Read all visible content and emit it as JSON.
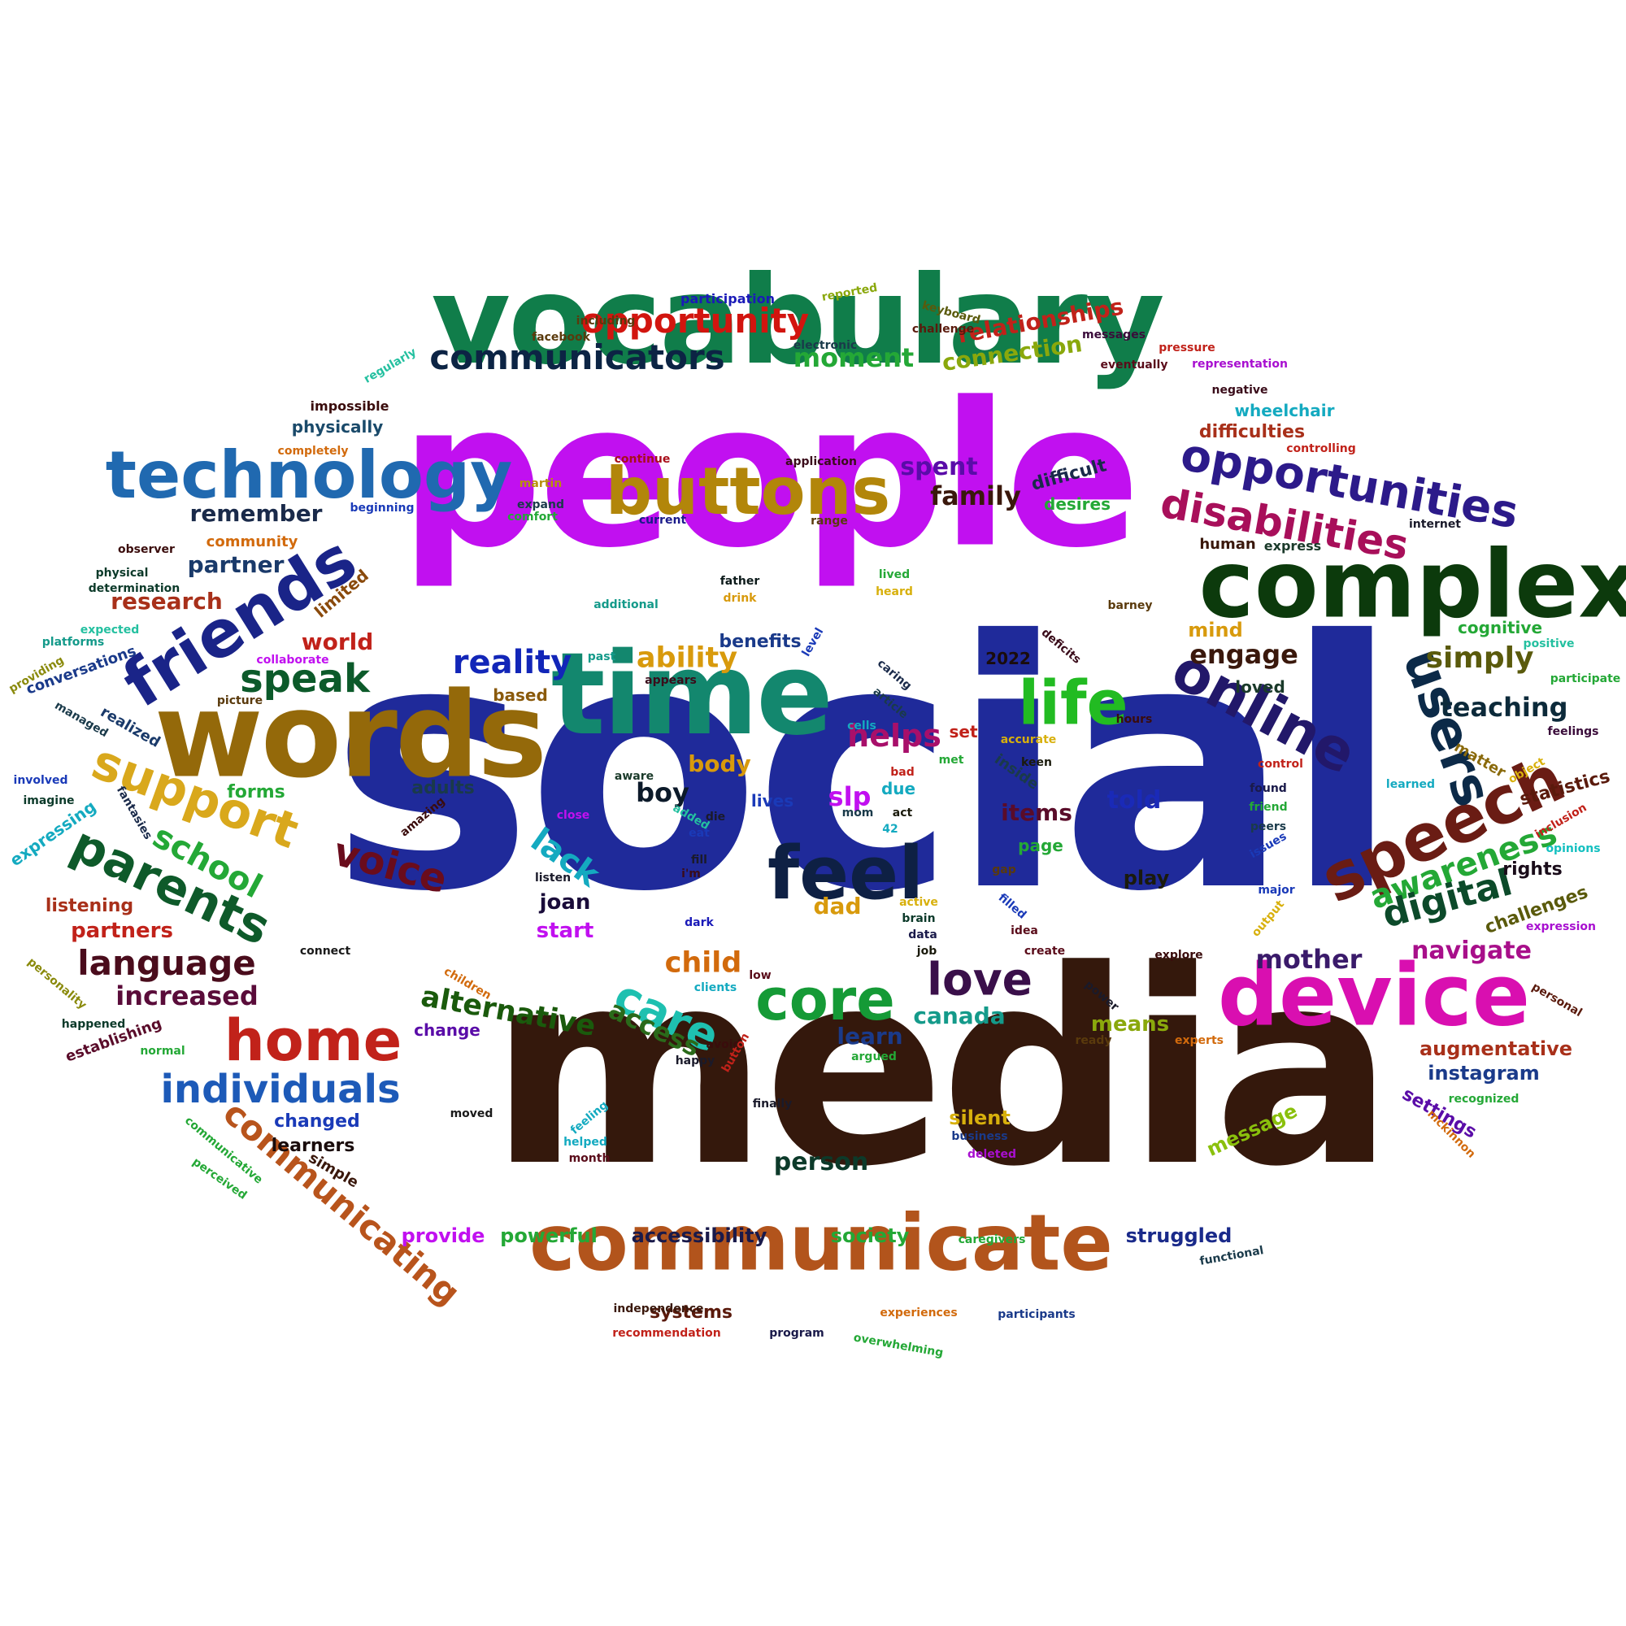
{
  "words": [
    {
      "text": "social",
      "color": "#1f2a9a"
    },
    {
      "text": "media",
      "color": "#34180c"
    },
    {
      "text": "people",
      "color": "#c110f0"
    },
    {
      "text": "vocabulary",
      "color": "#107d4a"
    },
    {
      "text": "words",
      "color": "#94690a"
    },
    {
      "text": "time",
      "color": "#13876e"
    },
    {
      "text": "communicate",
      "color": "#b2541c"
    },
    {
      "text": "complex",
      "color": "#0c3a0c"
    },
    {
      "text": "device",
      "color": "#d90fb0"
    },
    {
      "text": "technology",
      "color": "#2069b0"
    },
    {
      "text": "friends",
      "color": "#1a2488"
    },
    {
      "text": "buttons",
      "color": "#b2860a"
    },
    {
      "text": "feel",
      "color": "#0e2044"
    },
    {
      "text": "speech",
      "color": "#6a1c14"
    },
    {
      "text": "life",
      "color": "#22bb22"
    },
    {
      "text": "online",
      "color": "#22186a"
    },
    {
      "text": "users",
      "color": "#0c2a48"
    },
    {
      "text": "core",
      "color": "#159a36"
    },
    {
      "text": "home",
      "color": "#c1221a"
    },
    {
      "text": "support",
      "color": "#d9a81c"
    },
    {
      "text": "parents",
      "color": "#0e5a2a"
    },
    {
      "text": "opportunities",
      "color": "#2c1a8a"
    },
    {
      "text": "disabilities",
      "color": "#a80f5a"
    },
    {
      "text": "communicators",
      "color": "#0c2444"
    },
    {
      "text": "opportunity",
      "color": "#d2150f"
    },
    {
      "text": "individuals",
      "color": "#1d5ab8"
    },
    {
      "text": "communicating",
      "color": "#b8541c"
    },
    {
      "text": "speak",
      "color": "#0c5a2a"
    },
    {
      "text": "language",
      "color": "#4a0c1c"
    },
    {
      "text": "love",
      "color": "#3a0f4a"
    },
    {
      "text": "care",
      "color": "#1ec0b0"
    },
    {
      "text": "awareness",
      "color": "#24a836"
    },
    {
      "text": "digital",
      "color": "#0c4a2a"
    },
    {
      "text": "voice",
      "color": "#6a0c1c"
    },
    {
      "text": "school",
      "color": "#24a836"
    },
    {
      "text": "lack",
      "color": "#14aac0"
    },
    {
      "text": "reality",
      "color": "#1226b8"
    },
    {
      "text": "simply",
      "color": "#5a5a0c"
    },
    {
      "text": "ability",
      "color": "#d89a0c"
    },
    {
      "text": "helps",
      "color": "#a80f6a"
    },
    {
      "text": "alternative",
      "color": "#1a5a0c"
    },
    {
      "text": "access",
      "color": "#2a6a1a"
    },
    {
      "text": "child",
      "color": "#d26a0c"
    },
    {
      "text": "moment",
      "color": "#24a836"
    },
    {
      "text": "connection",
      "color": "#8aa80c"
    },
    {
      "text": "relationships",
      "color": "#c1221a"
    },
    {
      "text": "engage",
      "color": "#3a180c"
    },
    {
      "text": "teaching",
      "color": "#0c2a3a"
    },
    {
      "text": "navigate",
      "color": "#a80f8a"
    },
    {
      "text": "mother",
      "color": "#3a1a6a"
    },
    {
      "text": "increased",
      "color": "#5a0c3a"
    },
    {
      "text": "family",
      "color": "#3a180c"
    },
    {
      "text": "spent",
      "color": "#5a0ca8"
    },
    {
      "text": "remember",
      "color": "#1a2a4a"
    },
    {
      "text": "partner",
      "color": "#1a3a6a"
    },
    {
      "text": "research",
      "color": "#a8301a"
    },
    {
      "text": "world",
      "color": "#c1221a"
    },
    {
      "text": "canada",
      "color": "#149a8a"
    },
    {
      "text": "learn",
      "color": "#1a3a8a"
    },
    {
      "text": "body",
      "color": "#d89a0c"
    },
    {
      "text": "boy",
      "color": "#0c1a2a"
    },
    {
      "text": "slp",
      "color": "#c110f0"
    },
    {
      "text": "told",
      "color": "#1a2ab8"
    },
    {
      "text": "items",
      "color": "#5a0c2a"
    },
    {
      "text": "dad",
      "color": "#d89a0c"
    },
    {
      "text": "joan",
      "color": "#1a0c3a"
    },
    {
      "text": "start",
      "color": "#c110f0"
    },
    {
      "text": "play",
      "color": "#1a1a0c"
    },
    {
      "text": "person",
      "color": "#0c3a2a"
    },
    {
      "text": "means",
      "color": "#8aa80c"
    },
    {
      "text": "statistics",
      "color": "#5a1a0c"
    },
    {
      "text": "rights",
      "color": "#1a0c1a"
    },
    {
      "text": "challenges",
      "color": "#5a5a0c"
    },
    {
      "text": "instagram",
      "color": "#1a3a8a"
    },
    {
      "text": "augmentative",
      "color": "#a8301a"
    },
    {
      "text": "settings",
      "color": "#5a0ca8"
    },
    {
      "text": "message",
      "color": "#8ac00c"
    },
    {
      "text": "silent",
      "color": "#d8b00c"
    },
    {
      "text": "struggled",
      "color": "#1a2a8a"
    },
    {
      "text": "accessibility",
      "color": "#1a1a4a"
    },
    {
      "text": "society",
      "color": "#24a836"
    },
    {
      "text": "powerful",
      "color": "#24a836"
    },
    {
      "text": "provide",
      "color": "#c110f0"
    },
    {
      "text": "systems",
      "color": "#5a1a0c"
    },
    {
      "text": "changed",
      "color": "#1a3ab8"
    },
    {
      "text": "learners",
      "color": "#1a0c0c"
    },
    {
      "text": "partners",
      "color": "#c1221a"
    },
    {
      "text": "listening",
      "color": "#a8301a"
    },
    {
      "text": "forms",
      "color": "#24a836"
    },
    {
      "text": "adults",
      "color": "#1a3a4a"
    },
    {
      "text": "lives",
      "color": "#1a3ab8"
    },
    {
      "text": "benefits",
      "color": "#1a3a8a"
    },
    {
      "text": "based",
      "color": "#8a5a0c"
    },
    {
      "text": "mind",
      "color": "#d89a0c"
    },
    {
      "text": "loved",
      "color": "#1a3a2a"
    },
    {
      "text": "matter",
      "color": "#8a6a0c"
    },
    {
      "text": "cognitive",
      "color": "#24a836"
    },
    {
      "text": "difficult",
      "color": "#1a2a4a"
    },
    {
      "text": "desires",
      "color": "#24a836"
    },
    {
      "text": "difficulties",
      "color": "#a8301a"
    },
    {
      "text": "wheelchair",
      "color": "#14aac0"
    },
    {
      "text": "physically",
      "color": "#1a4a6a"
    },
    {
      "text": "community",
      "color": "#d26a0c"
    },
    {
      "text": "limited",
      "color": "#8a4a0c"
    },
    {
      "text": "realized",
      "color": "#1a3a6a"
    },
    {
      "text": "conversations",
      "color": "#1a3a8a"
    },
    {
      "text": "expressing",
      "color": "#14aac0"
    },
    {
      "text": "simple",
      "color": "#3a180c"
    },
    {
      "text": "establishing",
      "color": "#5a0c2a"
    },
    {
      "text": "human",
      "color": "#3a180c"
    },
    {
      "text": "express",
      "color": "#1a3a2a"
    },
    {
      "text": "2022",
      "color": "#1a0c0c"
    },
    {
      "text": "set",
      "color": "#c1221a"
    },
    {
      "text": "due",
      "color": "#14aac0"
    },
    {
      "text": "page",
      "color": "#24a836"
    },
    {
      "text": "inside",
      "color": "#1a3a4a"
    },
    {
      "text": "change",
      "color": "#5a0ca8"
    },
    {
      "text": "participation",
      "color": "#1a1ab8"
    },
    {
      "text": "reported",
      "color": "#8aa80c"
    },
    {
      "text": "keyboard",
      "color": "#5a5a0c"
    },
    {
      "text": "including",
      "color": "#5a3a0c"
    },
    {
      "text": "facebook",
      "color": "#5a3a0c"
    },
    {
      "text": "electronic",
      "color": "#1a3a4a"
    },
    {
      "text": "challenge",
      "color": "#5a1a0c"
    },
    {
      "text": "messages",
      "color": "#3a0c3a"
    },
    {
      "text": "pressure",
      "color": "#c1221a"
    },
    {
      "text": "eventually",
      "color": "#5a0c1a"
    },
    {
      "text": "representation",
      "color": "#a80fd0"
    },
    {
      "text": "regularly",
      "color": "#24c0a0"
    },
    {
      "text": "impossible",
      "color": "#3a0c0c"
    },
    {
      "text": "negative",
      "color": "#3a0c1a"
    },
    {
      "text": "completely",
      "color": "#d26a0c"
    },
    {
      "text": "continue",
      "color": "#a80f1a"
    },
    {
      "text": "application",
      "color": "#3a0c1a"
    },
    {
      "text": "controlling",
      "color": "#c1221a"
    },
    {
      "text": "martin",
      "color": "#b8900c"
    },
    {
      "text": "expand",
      "color": "#1a3a4a"
    },
    {
      "text": "comfort",
      "color": "#24a836"
    },
    {
      "text": "beginning",
      "color": "#1a3ab8"
    },
    {
      "text": "current",
      "color": "#1a1a8a"
    },
    {
      "text": "range",
      "color": "#5a3a0c"
    },
    {
      "text": "internet",
      "color": "#1a1a2a"
    },
    {
      "text": "observer",
      "color": "#3a0c0c"
    },
    {
      "text": "physical",
      "color": "#0c3a2a"
    },
    {
      "text": "determination",
      "color": "#0c3a2a"
    },
    {
      "text": "father",
      "color": "#0c1a1a"
    },
    {
      "text": "drink",
      "color": "#d89a0c"
    },
    {
      "text": "lived",
      "color": "#24a836"
    },
    {
      "text": "heard",
      "color": "#d8b00c"
    },
    {
      "text": "additional",
      "color": "#149a8a"
    },
    {
      "text": "barney",
      "color": "#5a3a0c"
    },
    {
      "text": "expected",
      "color": "#24c0a0"
    },
    {
      "text": "platforms",
      "color": "#149a8a"
    },
    {
      "text": "collaborate",
      "color": "#c110f0"
    },
    {
      "text": "providing",
      "color": "#8a8a0c"
    },
    {
      "text": "past",
      "color": "#149a8a"
    },
    {
      "text": "appears",
      "color": "#3a0c1a"
    },
    {
      "text": "level",
      "color": "#1a3ab8"
    },
    {
      "text": "caring",
      "color": "#1a2a4a"
    },
    {
      "text": "article",
      "color": "#1a3a4a"
    },
    {
      "text": "deficits",
      "color": "#3a0c1a"
    },
    {
      "text": "positive",
      "color": "#24c0a0"
    },
    {
      "text": "participate",
      "color": "#24a836"
    },
    {
      "text": "picture",
      "color": "#5a3a0c"
    },
    {
      "text": "managed",
      "color": "#1a3a4a"
    },
    {
      "text": "cells",
      "color": "#14aac0"
    },
    {
      "text": "met",
      "color": "#24a836"
    },
    {
      "text": "accurate",
      "color": "#d8b00c"
    },
    {
      "text": "hours",
      "color": "#3a0c0c"
    },
    {
      "text": "feelings",
      "color": "#3a0c3a"
    },
    {
      "text": "object",
      "color": "#d8b00c"
    },
    {
      "text": "involved",
      "color": "#1a3ab8"
    },
    {
      "text": "imagine",
      "color": "#0c3a2a"
    },
    {
      "text": "keen",
      "color": "#1a1a0c"
    },
    {
      "text": "learned",
      "color": "#14aac0"
    },
    {
      "text": "control",
      "color": "#c1221a"
    },
    {
      "text": "found",
      "color": "#1a1a4a"
    },
    {
      "text": "friend",
      "color": "#24a836"
    },
    {
      "text": "peers",
      "color": "#1a3a4a"
    },
    {
      "text": "issues",
      "color": "#1a3ab8"
    },
    {
      "text": "opinions",
      "color": "#14c0c0"
    },
    {
      "text": "inclusion",
      "color": "#c1221a"
    },
    {
      "text": "bad",
      "color": "#c1221a"
    },
    {
      "text": "mom",
      "color": "#1a3a4a"
    },
    {
      "text": "act",
      "color": "#1a1a0c"
    },
    {
      "text": "42",
      "color": "#14aac0"
    },
    {
      "text": "added",
      "color": "#24c0a0"
    },
    {
      "text": "close",
      "color": "#c110f0"
    },
    {
      "text": "die",
      "color": "#1a1a2a"
    },
    {
      "text": "eat",
      "color": "#1a3ab8"
    },
    {
      "text": "fill",
      "color": "#1a1a2a"
    },
    {
      "text": "amazing",
      "color": "#3a0c0c"
    },
    {
      "text": "fantasies",
      "color": "#1a2a4a"
    },
    {
      "text": "aware",
      "color": "#1a3a2a"
    },
    {
      "text": "listen",
      "color": "#1a1a2a"
    },
    {
      "text": "i'm",
      "color": "#3a0c1a"
    },
    {
      "text": "gap",
      "color": "#5a3a0c"
    },
    {
      "text": "major",
      "color": "#1a3ab8"
    },
    {
      "text": "active",
      "color": "#d8b00c"
    },
    {
      "text": "brain",
      "color": "#0c3a2a"
    },
    {
      "text": "filled",
      "color": "#1a3ab8"
    },
    {
      "text": "idea",
      "color": "#5a0c1a"
    },
    {
      "text": "output",
      "color": "#d8b00c"
    },
    {
      "text": "expression",
      "color": "#a80fd0"
    },
    {
      "text": "dark",
      "color": "#1a1ab8"
    },
    {
      "text": "data",
      "color": "#1a1a4a"
    },
    {
      "text": "job",
      "color": "#1a1a0c"
    },
    {
      "text": "create",
      "color": "#5a0c1a"
    },
    {
      "text": "explore",
      "color": "#3a0c0c"
    },
    {
      "text": "connect",
      "color": "#1a1a1a"
    },
    {
      "text": "personality",
      "color": "#8a8a0c"
    },
    {
      "text": "children",
      "color": "#d26a0c"
    },
    {
      "text": "clients",
      "color": "#14aac0"
    },
    {
      "text": "low",
      "color": "#5a0c1a"
    },
    {
      "text": "power",
      "color": "#1a1a2a"
    },
    {
      "text": "personal",
      "color": "#5a1a0c"
    },
    {
      "text": "happened",
      "color": "#0c3a2a"
    },
    {
      "text": "normal",
      "color": "#24a836"
    },
    {
      "text": "avoid",
      "color": "#3a0c0c"
    },
    {
      "text": "happy",
      "color": "#1a1a2a"
    },
    {
      "text": "button",
      "color": "#c1221a"
    },
    {
      "text": "argued",
      "color": "#24a836"
    },
    {
      "text": "ready",
      "color": "#5a3a0c"
    },
    {
      "text": "experts",
      "color": "#d26a0c"
    },
    {
      "text": "recognized",
      "color": "#24a836"
    },
    {
      "text": "finally",
      "color": "#1a1a2a"
    },
    {
      "text": "moved",
      "color": "#1a1a1a"
    },
    {
      "text": "feeling",
      "color": "#14aac0"
    },
    {
      "text": "helped",
      "color": "#14aac0"
    },
    {
      "text": "month",
      "color": "#5a0c1a"
    },
    {
      "text": "business",
      "color": "#1a3a8a"
    },
    {
      "text": "deleted",
      "color": "#a80fd0"
    },
    {
      "text": "mckinnon",
      "color": "#d26a0c"
    },
    {
      "text": "communicative",
      "color": "#24a836"
    },
    {
      "text": "perceived",
      "color": "#24a836"
    },
    {
      "text": "caregivers",
      "color": "#24a836"
    },
    {
      "text": "functional",
      "color": "#1a3a4a"
    },
    {
      "text": "independence",
      "color": "#3a180c"
    },
    {
      "text": "experiences",
      "color": "#d26a0c"
    },
    {
      "text": "participants",
      "color": "#1a3a8a"
    },
    {
      "text": "recommendation",
      "color": "#c1221a"
    },
    {
      "text": "program",
      "color": "#1a1a4a"
    },
    {
      "text": "overwhelming",
      "color": "#24a836"
    }
  ]
}
